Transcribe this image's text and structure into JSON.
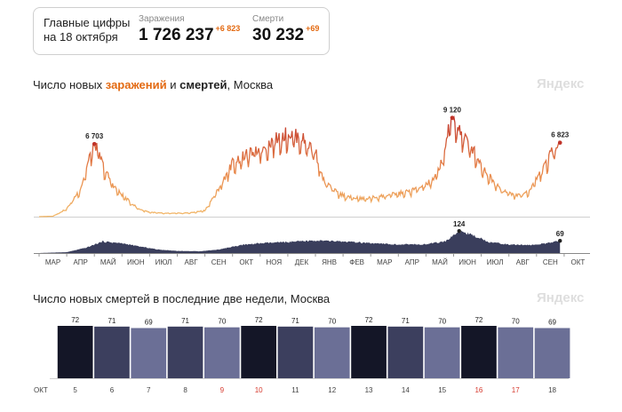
{
  "summary": {
    "label_line1": "Главные цифры",
    "label_line2": "на 18 октября",
    "cases": {
      "caption": "Заражения",
      "value": "1 726 237",
      "delta": "+6 823"
    },
    "deaths": {
      "caption": "Смерти",
      "value": "30 232",
      "delta": "+69"
    }
  },
  "chart1_title": {
    "prefix": "Число новых ",
    "cases_word": "заражений",
    "mid": " и ",
    "deaths_word": "смертей",
    "suffix": ", Москва"
  },
  "chart2_title": "Число новых смертей в последние две недели, Москва",
  "brand": "Яндекс",
  "colors": {
    "cases_early": "#f2b96b",
    "cases_late": "#c0342a",
    "deaths_area": "#3a3e5c",
    "deaths_bars": [
      "#141627",
      "#3c3f5e",
      "#6b6f96"
    ]
  },
  "chart_data": [
    {
      "type": "line",
      "title": "Число новых заражений и смертей, Москва",
      "months": [
        "МАР",
        "АПР",
        "МАЙ",
        "ИЮН",
        "ИЮЛ",
        "АВГ",
        "СЕН",
        "ОКТ",
        "НОЯ",
        "ДЕК",
        "ЯНВ",
        "ФЕВ",
        "МАР",
        "АПР",
        "МАЙ",
        "ИЮН",
        "ИЮЛ",
        "АВГ",
        "СЕН",
        "ОКТ"
      ],
      "series": [
        {
          "name": "заражений",
          "key": "cases",
          "points": [
            [
              0,
              0
            ],
            [
              0.5,
              40
            ],
            [
              1.0,
              700
            ],
            [
              1.5,
              2500
            ],
            [
              2.0,
              6703
            ],
            [
              2.4,
              4000
            ],
            [
              2.8,
              2400
            ],
            [
              3.2,
              1500
            ],
            [
              3.6,
              700
            ],
            [
              4.0,
              400
            ],
            [
              4.5,
              300
            ],
            [
              5.0,
              300
            ],
            [
              5.5,
              350
            ],
            [
              6.0,
              550
            ],
            [
              6.5,
              2500
            ],
            [
              7.0,
              4800
            ],
            [
              7.5,
              5500
            ],
            [
              8.0,
              6000
            ],
            [
              8.5,
              6800
            ],
            [
              9.0,
              7400
            ],
            [
              9.5,
              7000
            ],
            [
              10.0,
              5800
            ],
            [
              10.3,
              3200
            ],
            [
              10.8,
              2100
            ],
            [
              11.3,
              1700
            ],
            [
              11.8,
              1600
            ],
            [
              12.3,
              1800
            ],
            [
              12.8,
              2000
            ],
            [
              13.3,
              2200
            ],
            [
              13.8,
              2600
            ],
            [
              14.3,
              3300
            ],
            [
              14.6,
              5200
            ],
            [
              14.95,
              9120
            ],
            [
              15.3,
              7300
            ],
            [
              15.7,
              6000
            ],
            [
              16.1,
              4200
            ],
            [
              16.5,
              3000
            ],
            [
              16.9,
              2200
            ],
            [
              17.3,
              1900
            ],
            [
              17.7,
              2200
            ],
            [
              18.0,
              3400
            ],
            [
              18.3,
              4500
            ],
            [
              18.6,
              6000
            ],
            [
              18.85,
              6823
            ]
          ],
          "labels": [
            {
              "x": 2.0,
              "value": "6 703"
            },
            {
              "x": 14.95,
              "value": "9 120"
            },
            {
              "x": 18.85,
              "value": "6 823"
            }
          ]
        },
        {
          "name": "смертей",
          "key": "deaths",
          "points": [
            [
              0,
              0
            ],
            [
              1.0,
              5
            ],
            [
              1.7,
              30
            ],
            [
              2.3,
              65
            ],
            [
              3.0,
              55
            ],
            [
              3.6,
              38
            ],
            [
              4.3,
              20
            ],
            [
              5.0,
              12
            ],
            [
              5.8,
              10
            ],
            [
              6.5,
              20
            ],
            [
              7.3,
              45
            ],
            [
              8.0,
              55
            ],
            [
              9.0,
              62
            ],
            [
              10.0,
              70
            ],
            [
              11.0,
              65
            ],
            [
              12.0,
              55
            ],
            [
              13.0,
              48
            ],
            [
              14.0,
              50
            ],
            [
              14.7,
              65
            ],
            [
              15.2,
              124
            ],
            [
              15.7,
              100
            ],
            [
              16.3,
              62
            ],
            [
              17.0,
              48
            ],
            [
              17.8,
              45
            ],
            [
              18.4,
              55
            ],
            [
              18.85,
              69
            ]
          ],
          "labels": [
            {
              "x": 15.2,
              "value": "124"
            },
            {
              "x": 18.85,
              "value": "69"
            }
          ]
        }
      ],
      "cases_ylim": [
        0,
        9500
      ],
      "deaths_ylim": [
        0,
        130
      ]
    },
    {
      "type": "bar",
      "title": "Число новых смертей в последние две недели, Москва",
      "month_label": "ОКТ",
      "categories": [
        "5",
        "6",
        "7",
        "8",
        "9",
        "10",
        "11",
        "12",
        "13",
        "14",
        "15",
        "16",
        "17",
        "18"
      ],
      "values": [
        72,
        71,
        69,
        71,
        70,
        72,
        71,
        70,
        72,
        71,
        70,
        72,
        70,
        69
      ],
      "weekend": [
        false,
        false,
        false,
        false,
        true,
        true,
        false,
        false,
        false,
        false,
        false,
        true,
        true,
        false
      ],
      "shade": [
        0,
        1,
        2,
        1,
        2,
        0,
        1,
        2,
        0,
        1,
        2,
        0,
        2,
        2
      ],
      "ylim": [
        0,
        72
      ]
    }
  ]
}
